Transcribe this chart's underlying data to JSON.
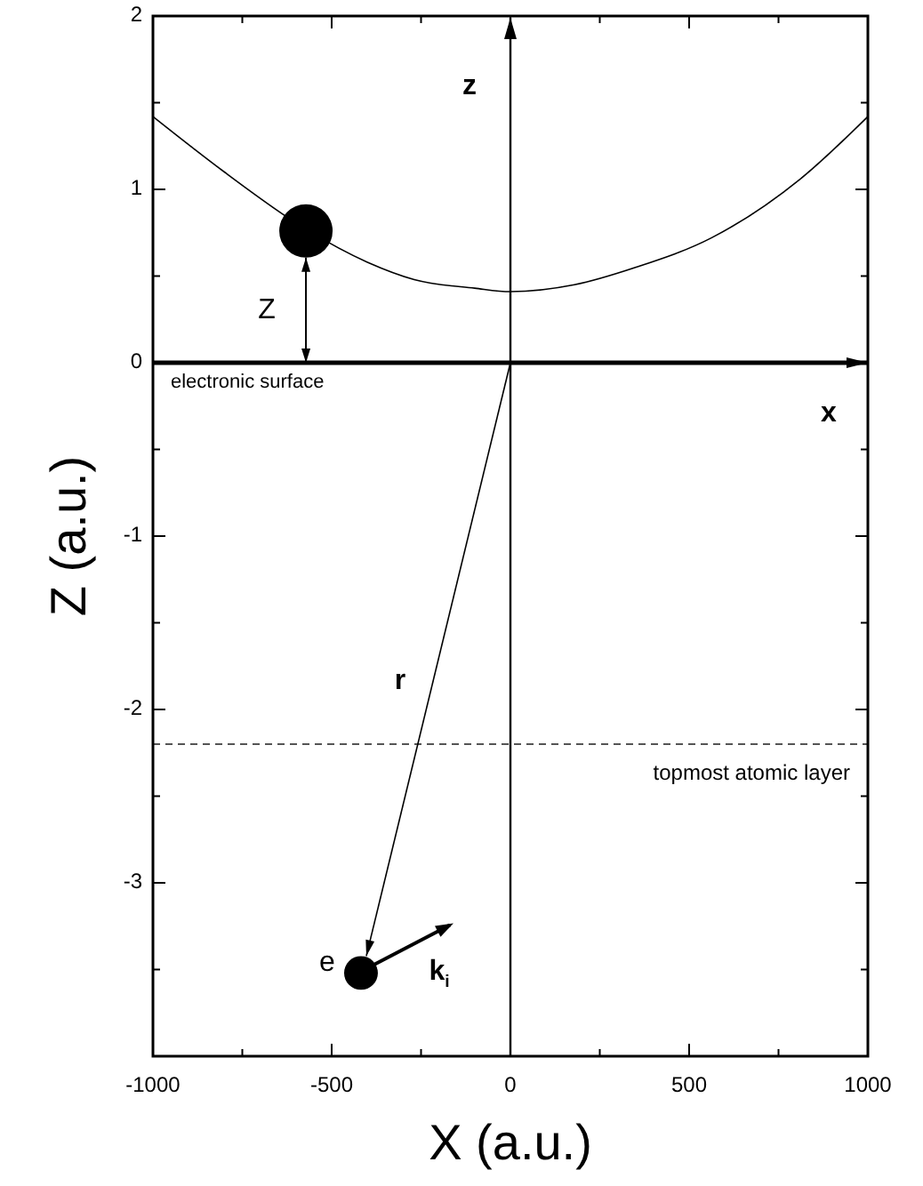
{
  "chart_data": {
    "type": "line",
    "xlabel": "X (a.u.)",
    "ylabel": "Z (a.u.)",
    "xlim": [
      -1000,
      1000
    ],
    "ylim": [
      -4,
      2
    ],
    "xticks": [
      -1000,
      {
        "value": -750,
        "label": null
      },
      -500,
      {
        "value": -250,
        "label": null
      },
      0,
      {
        "value": 250,
        "label": null
      },
      500,
      {
        "value": 750,
        "label": null
      },
      1000
    ],
    "yticks": [
      {
        "value": -4,
        "label": null
      },
      {
        "value": -3.5,
        "label": null
      },
      -3,
      {
        "value": -2.5,
        "label": null
      },
      -2,
      {
        "value": -1.5,
        "label": null
      },
      -1,
      {
        "value": -0.5,
        "label": null
      },
      0,
      {
        "value": 0.5,
        "label": null
      },
      1,
      {
        "value": 1.5,
        "label": null
      },
      2
    ],
    "grid": false,
    "series": [
      {
        "color": "#000000",
        "x": [
          -1000,
          -800,
          -572,
          -400,
          -269,
          -100,
          0,
          179,
          350,
          562,
          811,
          1000
        ],
        "values": [
          1.42,
          1.1,
          0.77,
          0.58,
          0.48,
          0.43,
          0.41,
          0.45,
          0.55,
          0.72,
          1.06,
          1.42
        ]
      },
      {
        "type": "bubble",
        "color": "#000000",
        "x": [
          -572,
          -418
        ],
        "values": [
          0.76,
          -3.52
        ],
        "sizes": [
          1,
          0.4
        ]
      }
    ],
    "ref_lines": [
      {
        "axis": "y",
        "value": 0,
        "label": "electronic surface",
        "color": "#000000",
        "line_style": "solid"
      },
      {
        "axis": "y",
        "value": -2.2,
        "label": "topmost atomic layer",
        "color": "#555555",
        "line_style": "dashed"
      }
    ],
    "annotations": [
      "z",
      "x",
      "Z",
      "r",
      "e",
      "k$_{i}$"
    ]
  }
}
